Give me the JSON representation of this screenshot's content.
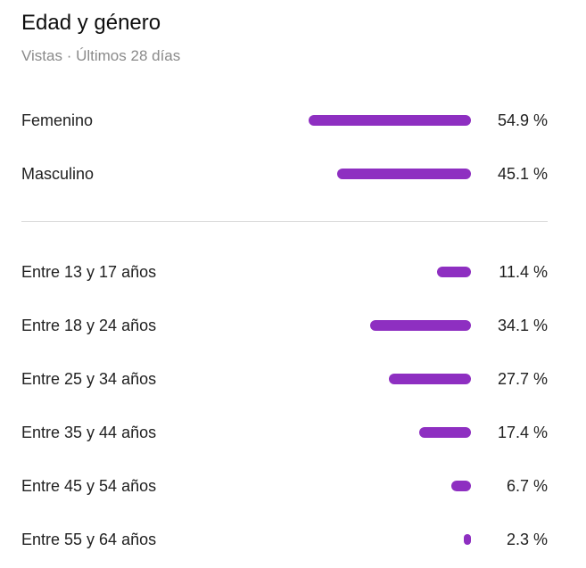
{
  "header": {
    "title": "Edad y género",
    "subtitle": "Vistas · Últimos 28 días"
  },
  "chart_data": [
    {
      "type": "bar",
      "orientation": "horizontal",
      "categories": [
        "Femenino",
        "Masculino"
      ],
      "values": [
        54.9,
        45.1
      ],
      "value_labels": [
        "54.9 %",
        "45.1 %"
      ],
      "color": "#8e2fc1"
    },
    {
      "type": "bar",
      "orientation": "horizontal",
      "categories": [
        "Entre 13 y 17 años",
        "Entre 18 y 24 años",
        "Entre 25 y 34 años",
        "Entre 35 y 44 años",
        "Entre 45 y 54 años",
        "Entre 55 y 64 años"
      ],
      "values": [
        11.4,
        34.1,
        27.7,
        17.4,
        6.7,
        2.3
      ],
      "value_labels": [
        "11.4 %",
        "34.1 %",
        "27.7 %",
        "17.4 %",
        "6.7 %",
        "2.3 %"
      ],
      "color": "#8e2fc1"
    }
  ]
}
